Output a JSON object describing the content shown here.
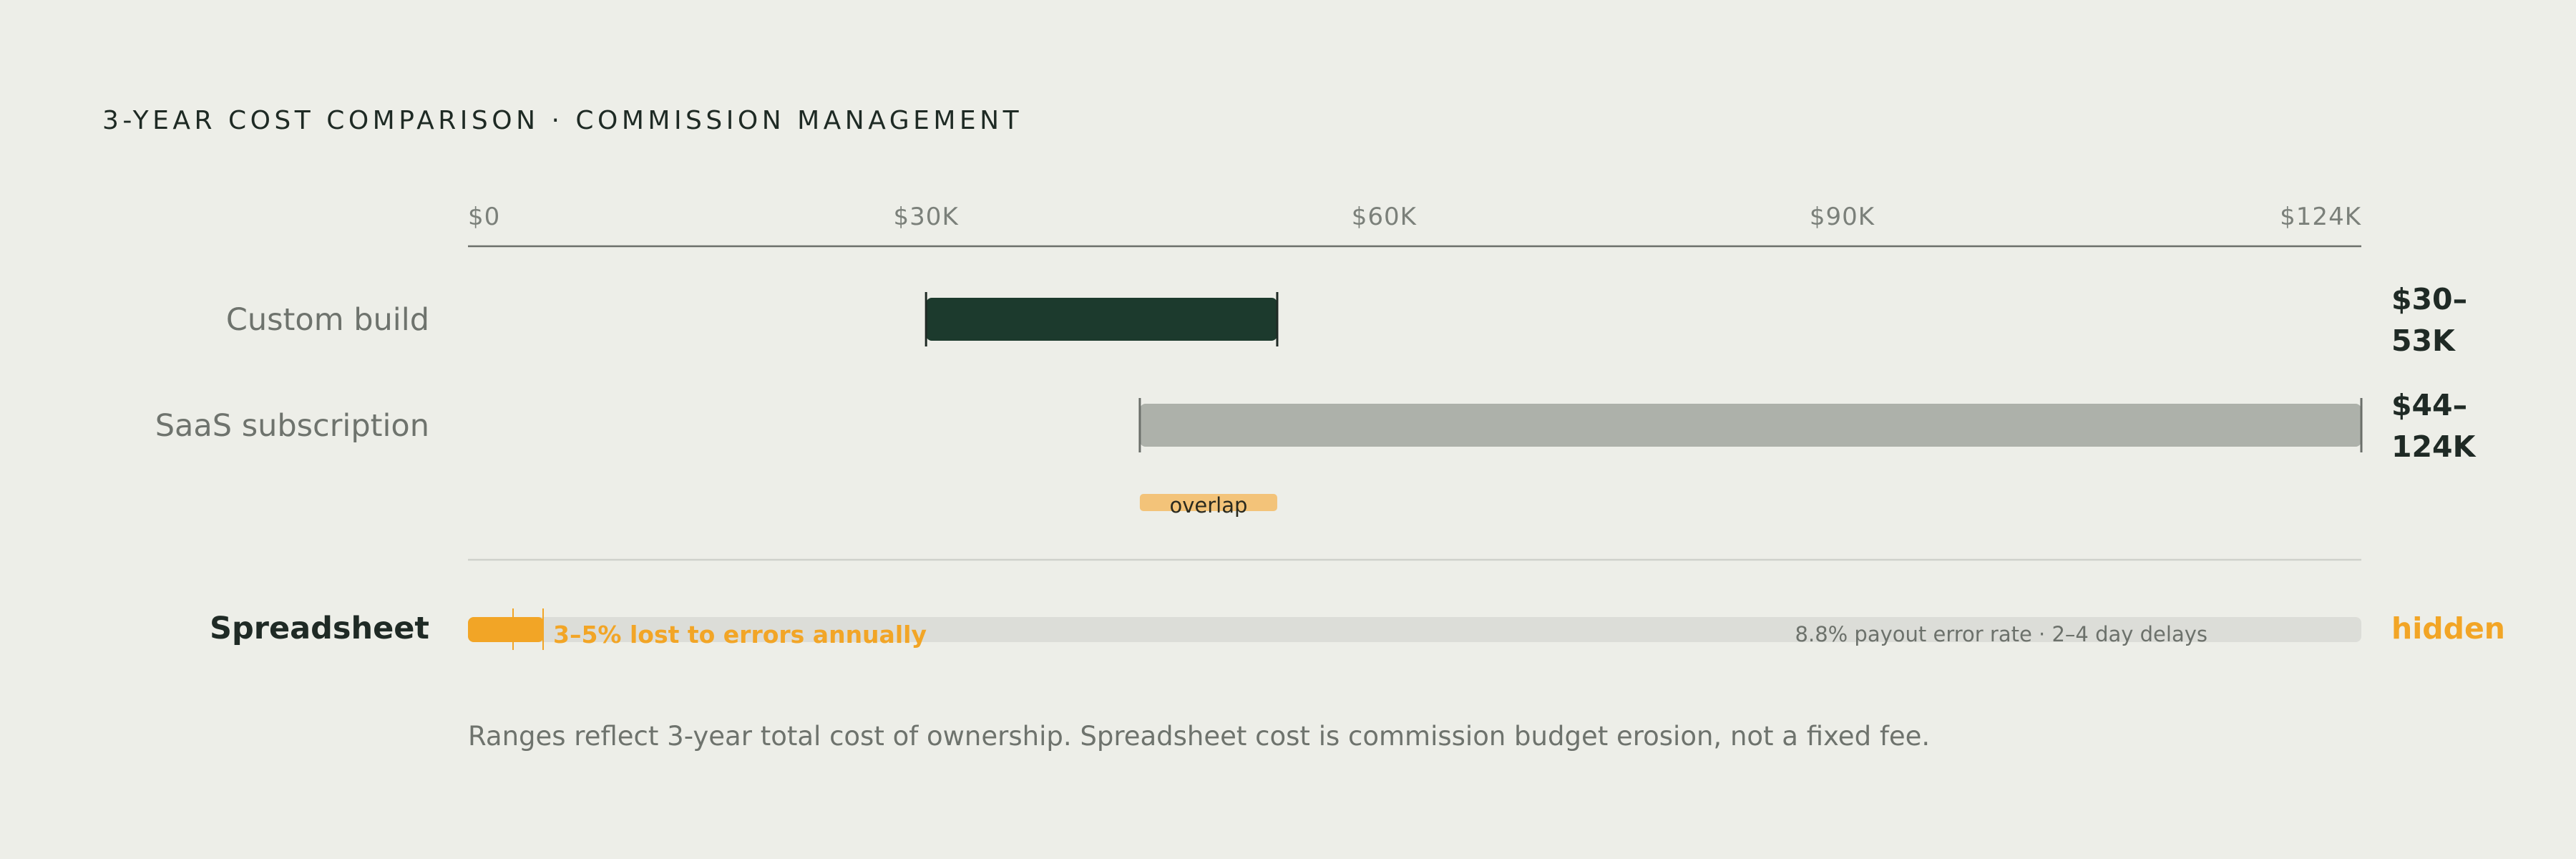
{
  "chart_data": {
    "type": "range-bar",
    "title": "3-YEAR COST COMPARISON · COMMISSION MANAGEMENT",
    "xlim": [
      0,
      124
    ],
    "x_unit": "$K",
    "ticks": [
      {
        "value": 0,
        "label": "$0"
      },
      {
        "value": 30,
        "label": "$30K"
      },
      {
        "value": 60,
        "label": "$60K"
      },
      {
        "value": 90,
        "label": "$90K"
      },
      {
        "value": 124,
        "label": "$124K"
      }
    ],
    "ranges": [
      {
        "label": "Custom build",
        "min": 30,
        "max": 53,
        "value_label": "$30–53K",
        "color": "#1c3a2d"
      },
      {
        "label": "SaaS subscription",
        "min": 44,
        "max": 124,
        "value_label": "$44–124K",
        "color": "#adb1aa"
      }
    ],
    "overlap": {
      "label": "overlap",
      "min": 44,
      "max": 53,
      "color": "#f3c379"
    },
    "spreadsheet": {
      "label": "Spreadsheet",
      "value_label": "hidden",
      "loss_range_percent": [
        3,
        5
      ],
      "loss_label": "3–5% lost to errors annually",
      "detail": "8.8% payout error rate · 2–4 day delays",
      "accent": "#f2a526"
    },
    "footnote": "Ranges reflect 3-year total cost of ownership. Spreadsheet cost is commission budget erosion, not a fixed fee."
  }
}
